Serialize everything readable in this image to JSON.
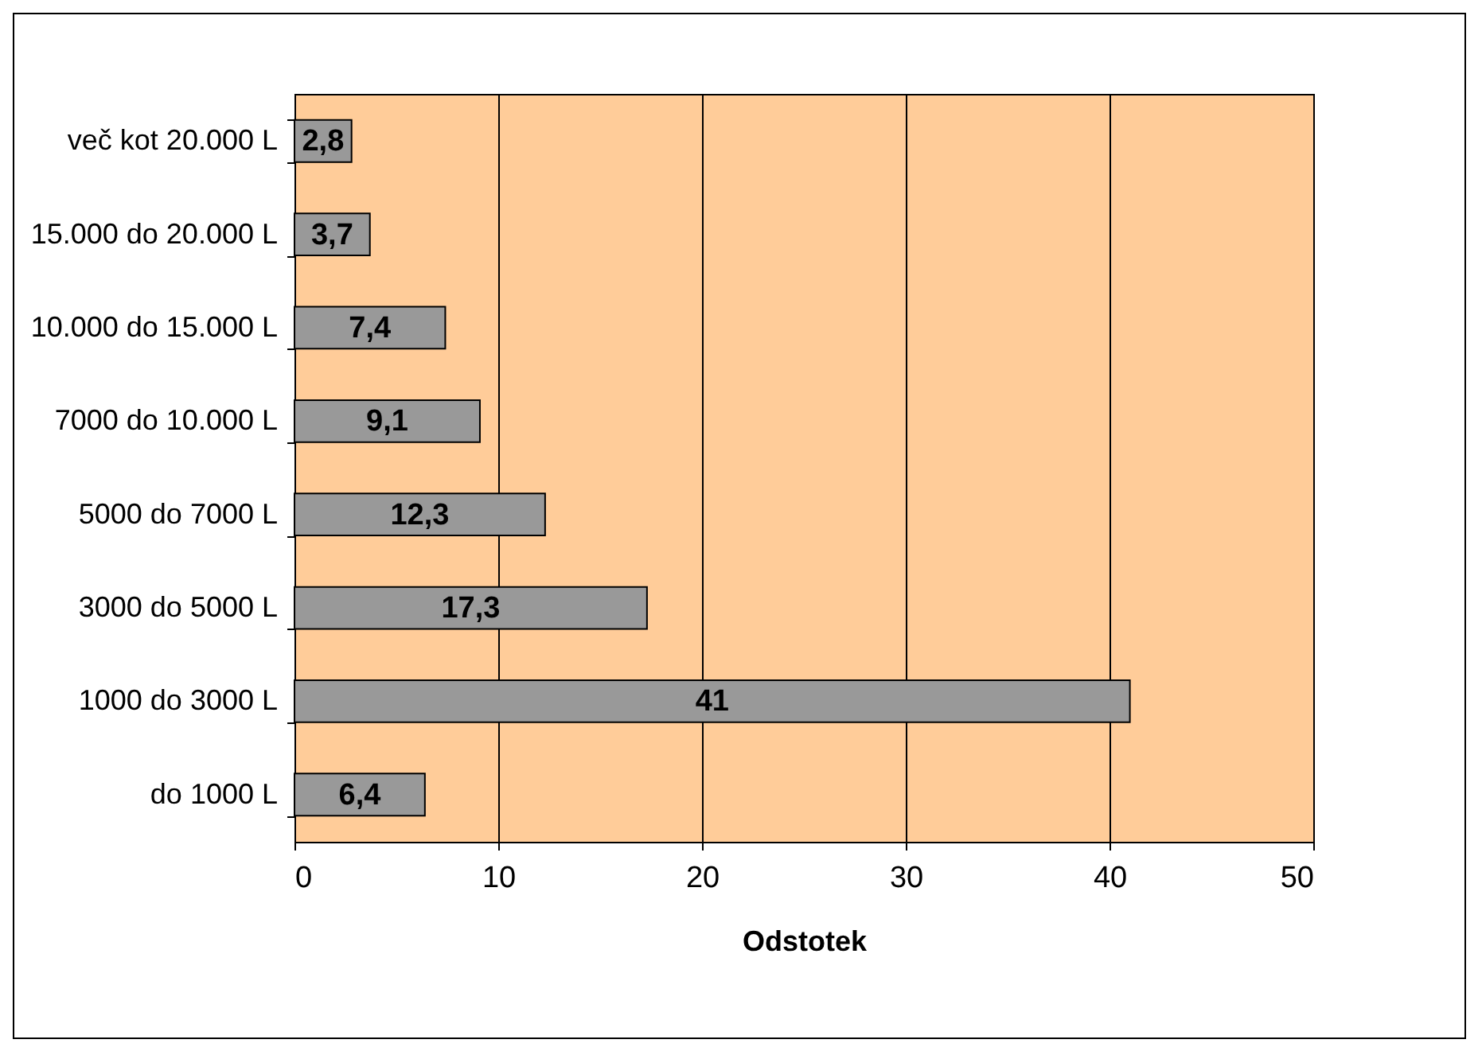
{
  "chart_data": {
    "type": "bar",
    "orientation": "horizontal",
    "xlabel": "Odstotek",
    "categories": [
      "več kot 20.000 L",
      "15.000 do 20.000 L",
      "10.000 do 15.000 L",
      "7000 do 10.000 L",
      "5000 do 7000 L",
      "3000 do 5000 L",
      "1000 do 3000 L",
      "do 1000 L"
    ],
    "values": [
      2.8,
      3.7,
      7.4,
      9.1,
      12.3,
      17.3,
      41,
      6.4
    ],
    "value_labels": [
      "2,8",
      "3,7",
      "7,4",
      "9,1",
      "12,3",
      "17,3",
      "41",
      "6,4"
    ],
    "color": "#999999",
    "xlim": [
      0,
      50
    ],
    "xticks": [
      0,
      10,
      20,
      30,
      40,
      50
    ],
    "grid": "x"
  }
}
